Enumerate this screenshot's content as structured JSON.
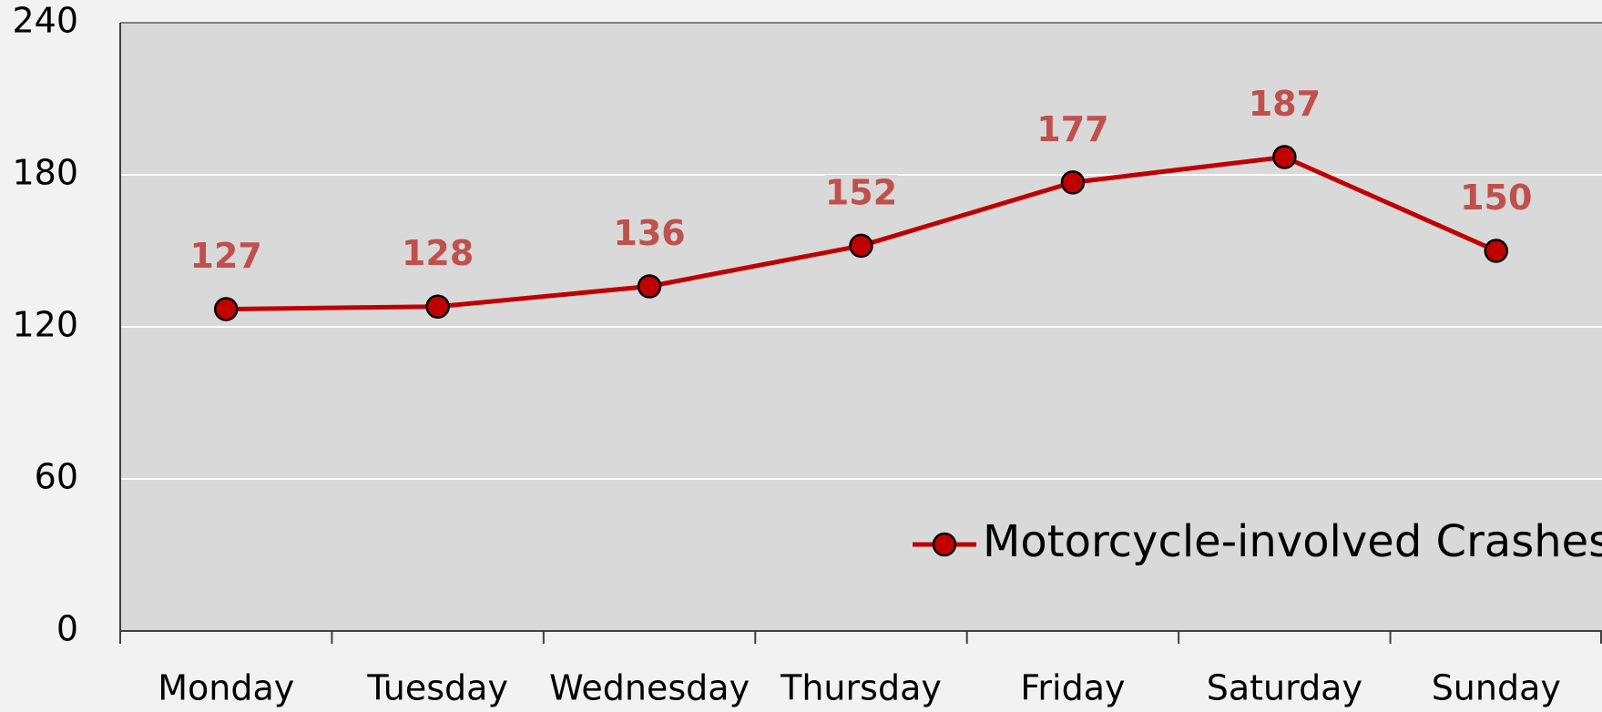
{
  "chart_data": {
    "type": "line",
    "categories": [
      "Monday",
      "Tuesday",
      "Wednesday",
      "Thursday",
      "Friday",
      "Saturday",
      "Sunday"
    ],
    "series": [
      {
        "name": "Motorcycle-involved Crashes",
        "color": "#c00000",
        "label_color": "#c0504d",
        "values": [
          127,
          128,
          136,
          152,
          177,
          187,
          150
        ]
      }
    ],
    "ylim": [
      0,
      240
    ],
    "yticks": [
      0,
      60,
      120,
      180,
      240
    ],
    "grid": true,
    "legend": "lower right"
  }
}
